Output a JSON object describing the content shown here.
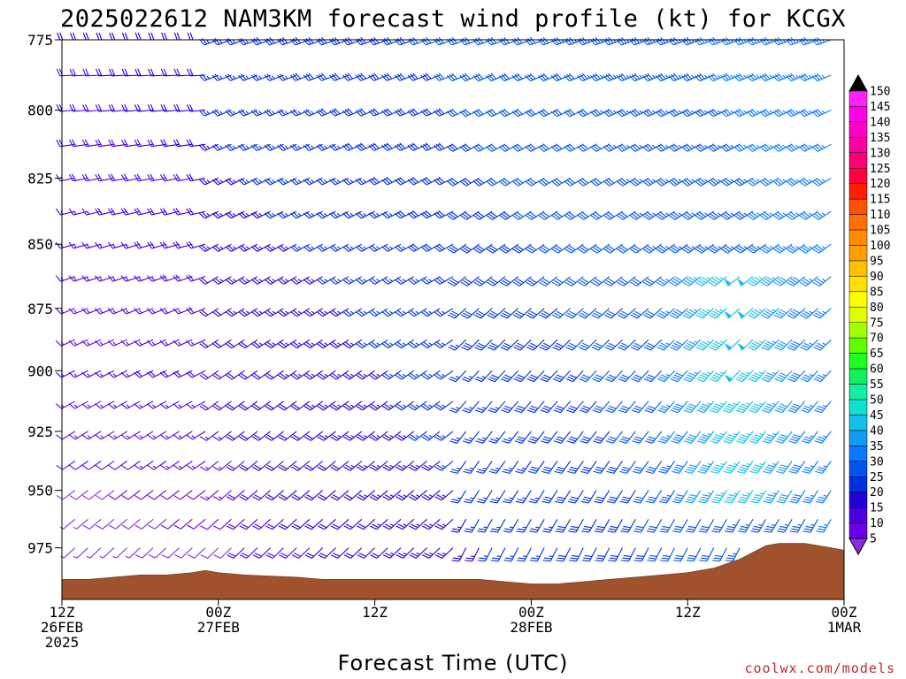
{
  "chart_data": {
    "type": "wind-barb-profile",
    "title": "2025022612 NAM3KM forecast wind profile (kt) for KCGX",
    "xlabel": "Forecast Time (UTC)",
    "credit": "coolwx.com/models",
    "y_axis": {
      "label": "",
      "inverted": true,
      "range": [
        775,
        998
      ],
      "ticks": [
        "775",
        "800",
        "825",
        "850",
        "875",
        "900",
        "925",
        "950",
        "975"
      ]
    },
    "x_axis": {
      "range_hours": [
        0,
        60
      ],
      "ticks": [
        {
          "hour": 0,
          "lines": [
            "12Z",
            "26FEB",
            "2025"
          ]
        },
        {
          "hour": 12,
          "lines": [
            "00Z",
            "27FEB"
          ]
        },
        {
          "hour": 24,
          "lines": [
            "12Z"
          ]
        },
        {
          "hour": 36,
          "lines": [
            "00Z",
            "28FEB"
          ]
        },
        {
          "hour": 48,
          "lines": [
            "12Z"
          ]
        },
        {
          "hour": 60,
          "lines": [
            "00Z",
            "1MAR"
          ]
        }
      ]
    },
    "colorbar": {
      "levels": [
        "5",
        "10",
        "15",
        "20",
        "25",
        "30",
        "35",
        "40",
        "45",
        "50",
        "55",
        "60",
        "65",
        "70",
        "75",
        "80",
        "85",
        "90",
        "95",
        "100",
        "105",
        "110",
        "115",
        "120",
        "125",
        "130",
        "135",
        "140",
        "145",
        "150"
      ],
      "colors": [
        "#8a2be2",
        "#6a00e8",
        "#4a00e0",
        "#2200d8",
        "#0030e0",
        "#0055e8",
        "#0a78ff",
        "#109cf0",
        "#12c0e8",
        "#10e0d0",
        "#10f0a0",
        "#10f060",
        "#20ff20",
        "#60ff00",
        "#a0ff00",
        "#e0ff00",
        "#ffff00",
        "#ffe000",
        "#ffc000",
        "#ffa000",
        "#ff8c00",
        "#ff7000",
        "#ff5000",
        "#ff2000",
        "#ff0040",
        "#ff0070",
        "#ff00a0",
        "#ff00c8",
        "#ff00e8",
        "#ff20ff"
      ]
    },
    "terrain_color": "#a0522d",
    "terrain_top_hpa": [
      [
        0,
        989
      ],
      [
        2,
        989
      ],
      [
        4,
        988
      ],
      [
        6,
        987
      ],
      [
        8,
        987
      ],
      [
        10,
        986
      ],
      [
        11,
        985
      ],
      [
        12,
        986
      ],
      [
        14,
        987
      ],
      [
        18,
        988
      ],
      [
        20,
        989
      ],
      [
        26,
        989
      ],
      [
        32,
        989
      ],
      [
        34,
        990
      ],
      [
        36,
        991
      ],
      [
        38,
        991
      ],
      [
        40,
        990
      ],
      [
        42,
        989
      ],
      [
        44,
        988
      ],
      [
        46,
        987
      ],
      [
        48,
        986
      ],
      [
        50,
        984
      ],
      [
        51,
        982
      ],
      [
        52,
        980
      ],
      [
        53,
        977
      ],
      [
        54,
        974
      ],
      [
        55,
        973
      ],
      [
        57,
        973
      ],
      [
        58,
        974
      ],
      [
        59,
        975
      ],
      [
        60,
        976
      ]
    ],
    "wind_field": {
      "hours_start": 0,
      "hours_end": 60,
      "hours_step": 1,
      "levels_top": 775,
      "levels_bottom": 985,
      "levels_step": 12.5
    }
  }
}
